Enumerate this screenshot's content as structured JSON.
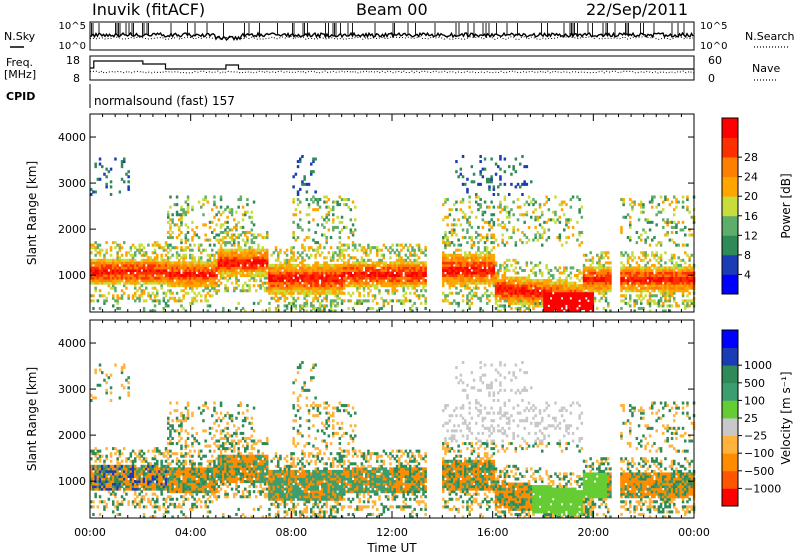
{
  "header": {
    "station": "Inuvik (fitACF)",
    "beam": "Beam 00",
    "date": "22/Sep/2011"
  },
  "noise_panel": {
    "left_label": "N.Sky",
    "right_label": "N.Search",
    "left_ticks": [
      "10^5",
      "10^0"
    ],
    "right_ticks": [
      "10^5",
      "10^0"
    ]
  },
  "freq_panel": {
    "left_label_1": "Freq.",
    "left_label_2": "[MHz]",
    "right_label": "Nave",
    "left_ticks": [
      "18",
      "8"
    ],
    "right_ticks": [
      "60",
      "0"
    ]
  },
  "cpid_panel": {
    "label": "CPID",
    "value": "normalsound (fast) 157"
  },
  "colors": {
    "power_scale": [
      "#0000ff",
      "#1a3cb4",
      "#2e8b57",
      "#5fad6a",
      "#c8dc3c",
      "#ffa500",
      "#ff7f00",
      "#ff3000",
      "#ff0000"
    ],
    "velocity_scale": [
      "#ff0000",
      "#ff5500",
      "#ff8c00",
      "#ffb33c",
      "#c8c8c8",
      "#66cc33",
      "#3c9e6e",
      "#2e8b57",
      "#1a3cb4",
      "#0000ff"
    ]
  },
  "chart_data": [
    {
      "type": "heatmap",
      "name": "power",
      "ylabel": "Slant Range [km]",
      "yticks": [
        "1000",
        "2000",
        "3000",
        "4000"
      ],
      "ylim": [
        200,
        4500
      ],
      "colorbar_label": "Power [dB]",
      "colorbar_ticks": [
        "4",
        "8",
        "12",
        "16",
        "20",
        "24",
        "28"
      ],
      "colorbar_range": [
        0,
        32
      ]
    },
    {
      "type": "heatmap",
      "name": "velocity",
      "ylabel": "Slant Range [km]",
      "yticks": [
        "1000",
        "2000",
        "3000",
        "4000"
      ],
      "ylim": [
        200,
        4500
      ],
      "colorbar_label": "Velocity [m s⁻¹]",
      "colorbar_ticks": [
        "1000",
        "500",
        "100",
        "25",
        "−25",
        "−100",
        "−500",
        "−1000"
      ]
    }
  ],
  "time_axis": {
    "label": "Time UT",
    "ticks": [
      "00:00",
      "04:00",
      "08:00",
      "12:00",
      "16:00",
      "20:00",
      "00:00"
    ]
  }
}
